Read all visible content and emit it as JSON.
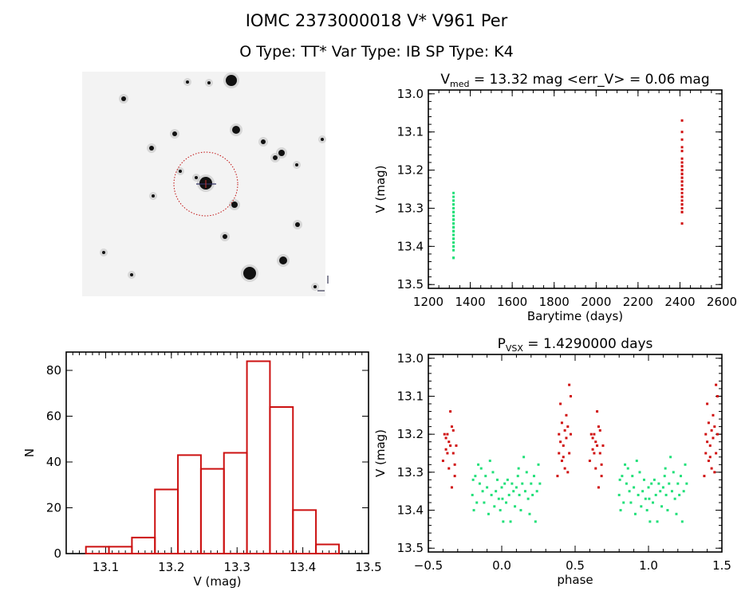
{
  "header": {
    "title": "IOMC 2373000018    V* V961 Per",
    "subtitle": "O Type: TT*  Var Type: IB  SP Type: K4"
  },
  "colors": {
    "season1": "#22e07a",
    "season2": "#d01010",
    "histogram": "#cc1111",
    "aperture": "#c01010"
  },
  "chart_data": [
    {
      "type": "image",
      "description_label": "finder chart"
    },
    {
      "type": "scatter",
      "title_main": "V",
      "title_sub": "med",
      "title_rest": " = 13.32 mag <err_V> = 0.06 mag",
      "xlabel": "Barytime (days)",
      "ylabel": "V (mag)",
      "xlim": [
        1200,
        2600
      ],
      "ylim": [
        12.99,
        13.51
      ],
      "y_inverted": true,
      "xticks": [
        "1200",
        "1400",
        "1600",
        "1800",
        "2000",
        "2200",
        "2400",
        "2600"
      ],
      "yticks": [
        "13.0",
        "13.1",
        "13.2",
        "13.3",
        "13.4",
        "13.5"
      ]
    },
    {
      "type": "bar",
      "xlabel": "V (mag)",
      "ylabel": "N",
      "xlim": [
        13.04,
        13.5
      ],
      "ylim": [
        0,
        88
      ],
      "bin_edges": [
        13.07,
        13.105,
        13.14,
        13.175,
        13.21,
        13.245,
        13.28,
        13.315,
        13.35,
        13.385,
        13.42,
        13.455
      ],
      "values": [
        3,
        3,
        7,
        28,
        43,
        37,
        44,
        84,
        64,
        19,
        4
      ],
      "xticks": [
        "13.1",
        "13.2",
        "13.3",
        "13.4",
        "13.5"
      ],
      "yticks": [
        "0",
        "20",
        "40",
        "60",
        "80"
      ]
    },
    {
      "type": "scatter",
      "title_main": "P",
      "title_sub": "VSX",
      "title_rest": " = 1.4290000 days",
      "xlabel": "phase",
      "ylabel": "V (mag)",
      "xlim": [
        -0.5,
        1.5
      ],
      "ylim": [
        12.99,
        13.51
      ],
      "y_inverted": true,
      "xticks": [
        "−0.5",
        "0.0",
        "0.5",
        "1.0",
        "1.5"
      ],
      "yticks": [
        "13.0",
        "13.1",
        "13.2",
        "13.3",
        "13.4",
        "13.5"
      ]
    }
  ],
  "observations": [
    {
      "color": "#22e07a",
      "t": 1320,
      "points": [
        [
          -0.2,
          13.36
        ],
        [
          -0.19,
          13.4
        ],
        [
          -0.18,
          13.31
        ],
        [
          -0.17,
          13.38
        ],
        [
          -0.16,
          13.28
        ],
        [
          -0.15,
          13.33
        ],
        [
          -0.14,
          13.29
        ],
        [
          -0.13,
          13.35
        ],
        [
          -0.12,
          13.38
        ],
        [
          -0.11,
          13.31
        ],
        [
          -0.1,
          13.34
        ],
        [
          -0.09,
          13.41
        ],
        [
          -0.08,
          13.27
        ],
        [
          -0.07,
          13.36
        ],
        [
          -0.06,
          13.3
        ],
        [
          -0.05,
          13.39
        ],
        [
          -0.04,
          13.35
        ],
        [
          -0.03,
          13.32
        ],
        [
          -0.02,
          13.37
        ],
        [
          -0.01,
          13.4
        ],
        [
          0.0,
          13.34
        ],
        [
          0.01,
          13.43
        ],
        [
          0.02,
          13.33
        ],
        [
          0.03,
          13.38
        ],
        [
          0.04,
          13.32
        ],
        [
          0.05,
          13.36
        ],
        [
          0.06,
          13.43
        ],
        [
          0.07,
          13.33
        ],
        [
          0.08,
          13.35
        ],
        [
          0.09,
          13.39
        ],
        [
          0.1,
          13.34
        ],
        [
          0.11,
          13.31
        ],
        [
          0.12,
          13.36
        ],
        [
          0.13,
          13.4
        ],
        [
          0.14,
          13.33
        ],
        [
          0.15,
          13.26
        ],
        [
          0.16,
          13.35
        ],
        [
          0.17,
          13.3
        ],
        [
          0.18,
          13.37
        ],
        [
          0.19,
          13.41
        ],
        [
          0.2,
          13.33
        ],
        [
          0.21,
          13.36
        ],
        [
          0.22,
          13.31
        ],
        [
          0.23,
          13.43
        ],
        [
          0.24,
          13.35
        ],
        [
          0.25,
          13.28
        ],
        [
          0.26,
          13.33
        ],
        [
          -0.195,
          13.32
        ],
        [
          0.005,
          13.37
        ],
        [
          0.115,
          13.29
        ]
      ]
    },
    {
      "color": "#d01010",
      "t": 2410,
      "points": [
        [
          0.38,
          13.31
        ],
        [
          0.39,
          13.2
        ],
        [
          0.39,
          13.25
        ],
        [
          0.4,
          13.12
        ],
        [
          0.4,
          13.22
        ],
        [
          0.41,
          13.17
        ],
        [
          0.41,
          13.27
        ],
        [
          0.42,
          13.23
        ],
        [
          0.42,
          13.26
        ],
        [
          0.43,
          13.19
        ],
        [
          0.43,
          13.29
        ],
        [
          0.44,
          13.15
        ],
        [
          0.44,
          13.21
        ],
        [
          0.45,
          13.18
        ],
        [
          0.45,
          13.3
        ],
        [
          0.46,
          13.07
        ],
        [
          0.46,
          13.25
        ],
        [
          0.47,
          13.1
        ],
        [
          0.47,
          13.2
        ],
        [
          0.6,
          13.27
        ],
        [
          0.61,
          13.2
        ],
        [
          0.62,
          13.24
        ],
        [
          0.62,
          13.21
        ],
        [
          0.63,
          13.2
        ],
        [
          0.64,
          13.22
        ],
        [
          0.64,
          13.29
        ],
        [
          0.65,
          13.14
        ],
        [
          0.65,
          13.23
        ],
        [
          0.66,
          13.18
        ],
        [
          0.66,
          13.34
        ],
        [
          0.67,
          13.25
        ],
        [
          0.67,
          13.19
        ],
        [
          0.68,
          13.28
        ],
        [
          0.68,
          13.31
        ],
        [
          0.69,
          13.23
        ],
        [
          0.63,
          13.25
        ]
      ]
    }
  ]
}
